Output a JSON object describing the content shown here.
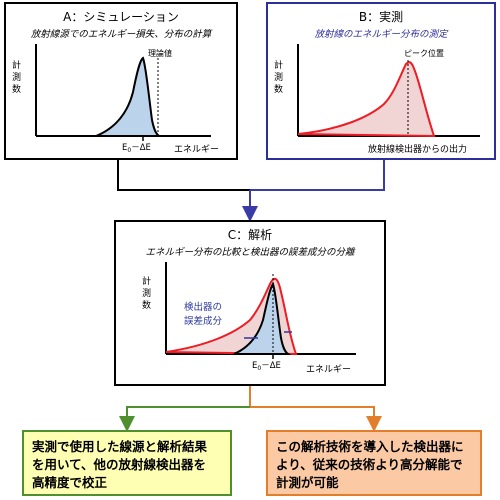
{
  "panel_a": {
    "title": "A：シミュレーション",
    "subtitle": "放射線源でのエネルギー損失、分布の計算",
    "y_axis_label": [
      "計",
      "測",
      "数"
    ],
    "x_axis_label": "エネルギー",
    "peak_label": "理論値",
    "marker_label": "E",
    "marker_sub": "0",
    "marker_rest": "－ΔE"
  },
  "panel_b": {
    "title": "B：実測",
    "subtitle": "放射線のエネルギー分布の測定",
    "y_axis_label": [
      "計",
      "測",
      "数"
    ],
    "x_axis_label": "放射線検出器からの出力",
    "peak_label": "ピーク位置"
  },
  "panel_c": {
    "title": "C：解析",
    "subtitle": "エネルギー分布の比較と検出器の誤差成分の分離",
    "y_axis_label": [
      "計",
      "測",
      "数"
    ],
    "x_axis_label": "エネルギー",
    "error_label_line1": "検出器の",
    "error_label_line2": "誤差成分",
    "marker_label": "E",
    "marker_sub": "0",
    "marker_rest": "－ΔE"
  },
  "result_left": {
    "lines": [
      "実測で使用した線源と解析結果",
      "を用いて、他の放射線検出器を",
      "高精度で校正"
    ]
  },
  "result_right": {
    "lines": [
      "この解析技術を導入した検出器に",
      "より、従来の技術より高分解能で",
      "計測が可能"
    ]
  },
  "colors": {
    "simulation_fill": "#bcd3ec",
    "measurement_line": "#ee1c24",
    "measurement_fill": "#f1d4d4",
    "panel_b_border": "#2e2e9a",
    "connector_black": "#000000",
    "connector_blue": "#3b3ba8",
    "connector_green": "#4f8f2e",
    "connector_orange": "#e37f2b",
    "error_text": "#2e3a9c",
    "result_left_bg": "#ffffb3",
    "result_right_bg": "#fbc9a4"
  }
}
